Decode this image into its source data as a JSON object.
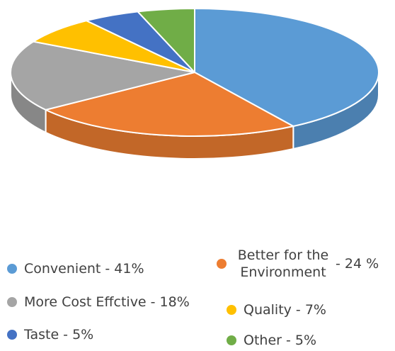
{
  "chart_data": {
    "type": "pie",
    "three_d": true,
    "title": "",
    "categories": [
      "Convenient",
      "Better for the Environment",
      "More Cost Effctive",
      "Quality",
      "Taste",
      "Other"
    ],
    "values": [
      41,
      24,
      18,
      7,
      5,
      5
    ],
    "colors": [
      "#5B9BD5",
      "#ED7D31",
      "#A5A5A5",
      "#FFC000",
      "#4472C4",
      "#70AD47"
    ],
    "legend_placement": "bottom",
    "legend": [
      {
        "text": "Convenient - 41%",
        "color": "#5B9BD5"
      },
      {
        "text": "Better for the Environment",
        "suffix": "- 24 %",
        "color": "#ED7D31"
      },
      {
        "text": "More Cost Effctive - 18%",
        "color": "#A5A5A5"
      },
      {
        "text": "Quality - 7%",
        "color": "#FFC000"
      },
      {
        "text": "Taste - 5%",
        "color": "#4472C4"
      },
      {
        "text": "Other - 5%",
        "color": "#70AD47"
      }
    ]
  }
}
